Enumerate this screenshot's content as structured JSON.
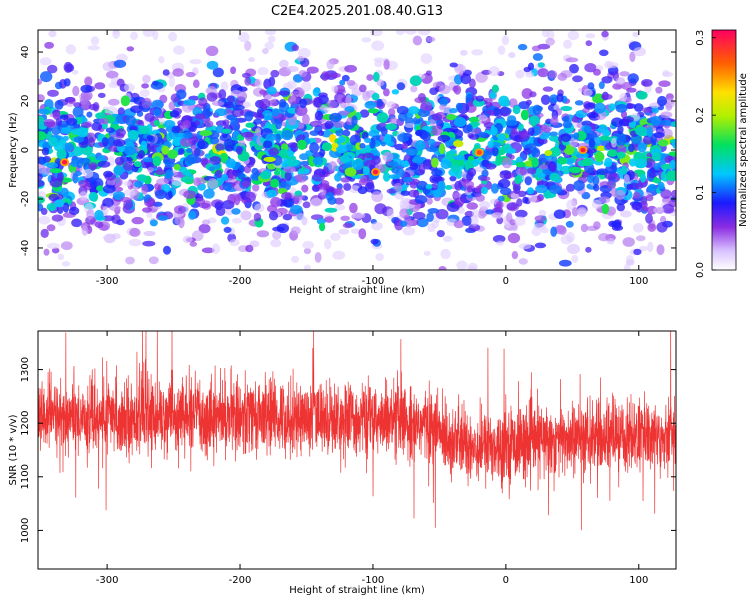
{
  "figure": {
    "title": "C2E4.2025.201.08.40.G13"
  },
  "chart_data": [
    {
      "type": "heatmap",
      "xlabel": "Height of straight line (km)",
      "ylabel": "Frequency (Hz)",
      "xlim": [
        -352,
        128
      ],
      "ylim": [
        -49,
        49
      ],
      "x_ticks": [
        -300,
        -200,
        -100,
        0,
        100
      ],
      "y_ticks": [
        -40,
        -20,
        0,
        20,
        40
      ],
      "grid": false,
      "colorbar": {
        "label": "Normalized spectral amplitude",
        "range": [
          0.0,
          0.31
        ],
        "ticks": [
          0.0,
          0.1,
          0.2,
          0.3
        ],
        "tick_labels": [
          "0.0",
          "0.1",
          "0.2",
          "0.3"
        ]
      },
      "description_values": {
        "typical_amplitude_band_center": 0.1,
        "peak_amplitude": 0.3,
        "peaks": [
          {
            "x": -332,
            "y": -5,
            "value": 0.3
          },
          {
            "x": -98,
            "y": -9,
            "value": 0.3
          },
          {
            "x": -20,
            "y": -1,
            "value": 0.28
          },
          {
            "x": 58,
            "y": 0,
            "value": 0.3
          }
        ]
      }
    },
    {
      "type": "line",
      "xlabel": "Height of straight line (km)",
      "ylabel": "SNR (10 * v/v)",
      "xlim": [
        -352,
        128
      ],
      "ylim": [
        928,
        1372
      ],
      "x_ticks": [
        -300,
        -200,
        -100,
        0,
        100
      ],
      "y_ticks": [
        1000,
        1100,
        1200,
        1300
      ],
      "grid": false,
      "series": [
        {
          "color": "#ee3333",
          "x": [
            -350,
            -300,
            -250,
            -200,
            -150,
            -100,
            -60,
            -40,
            -20,
            0,
            20,
            40,
            60,
            80,
            100,
            128
          ],
          "y": [
            1215,
            1210,
            1212,
            1215,
            1210,
            1205,
            1198,
            1168,
            1155,
            1160,
            1165,
            1170,
            1170,
            1175,
            1175,
            1180
          ]
        }
      ]
    }
  ]
}
